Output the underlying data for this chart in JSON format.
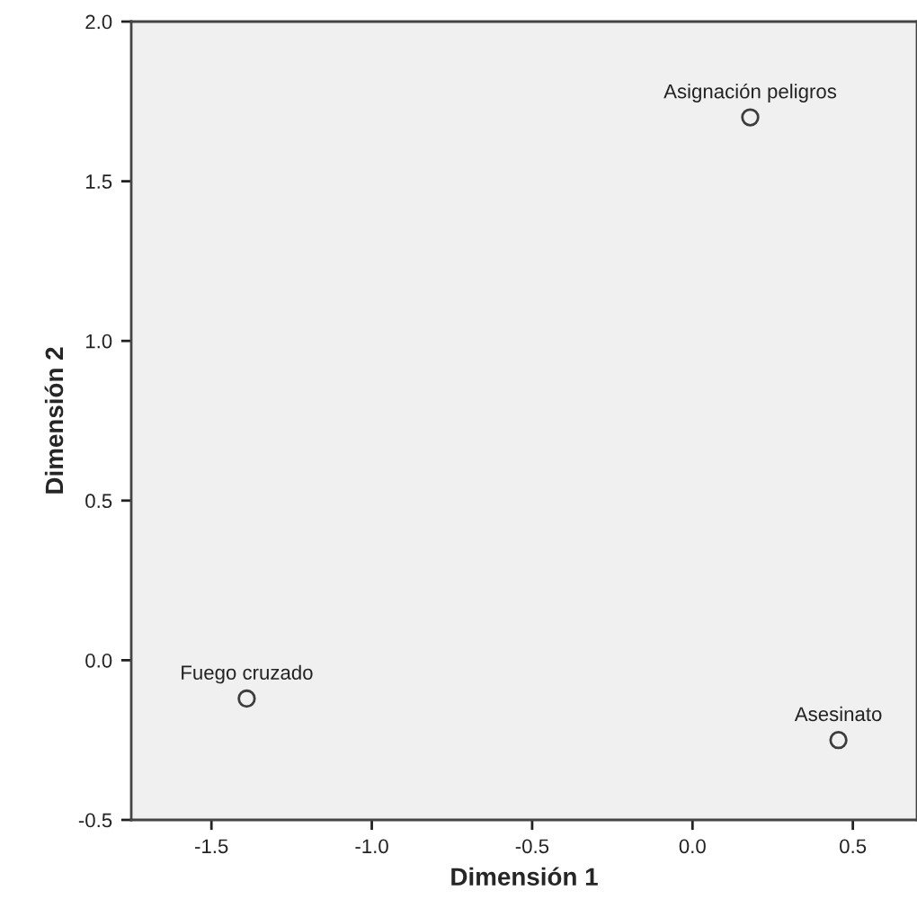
{
  "chart_data": {
    "type": "scatter",
    "xlabel": "Dimensión 1",
    "ylabel": "Dimensión 2",
    "x": [
      -1.39,
      0.18,
      0.455
    ],
    "series": [
      {
        "color": "#3c3c3c",
        "values": [
          -0.12,
          1.7,
          -0.25
        ]
      }
    ],
    "annotations": [
      {
        "text": "Fuego cruzado",
        "x": -1.39,
        "y": -0.12
      },
      {
        "text": "Asignación peligros",
        "x": 0.18,
        "y": 1.7
      },
      {
        "text": "Asesinato",
        "x": 0.455,
        "y": -0.25
      }
    ],
    "xlim": [
      -1.75,
      0.7
    ],
    "ylim": [
      -0.5,
      2.0
    ],
    "xticks": [
      -1.5,
      {
        "value": -1,
        "label": "-1.0"
      },
      -0.5,
      {
        "value": 0,
        "label": "0.0"
      },
      0.5
    ],
    "yticks": [
      -0.5,
      {
        "value": 0,
        "label": "0.0"
      },
      0.5,
      {
        "value": 1,
        "label": "1.0"
      },
      1.5,
      {
        "value": 2,
        "label": "2.0"
      }
    ],
    "marker": "circle",
    "grid": false,
    "legend": false
  }
}
